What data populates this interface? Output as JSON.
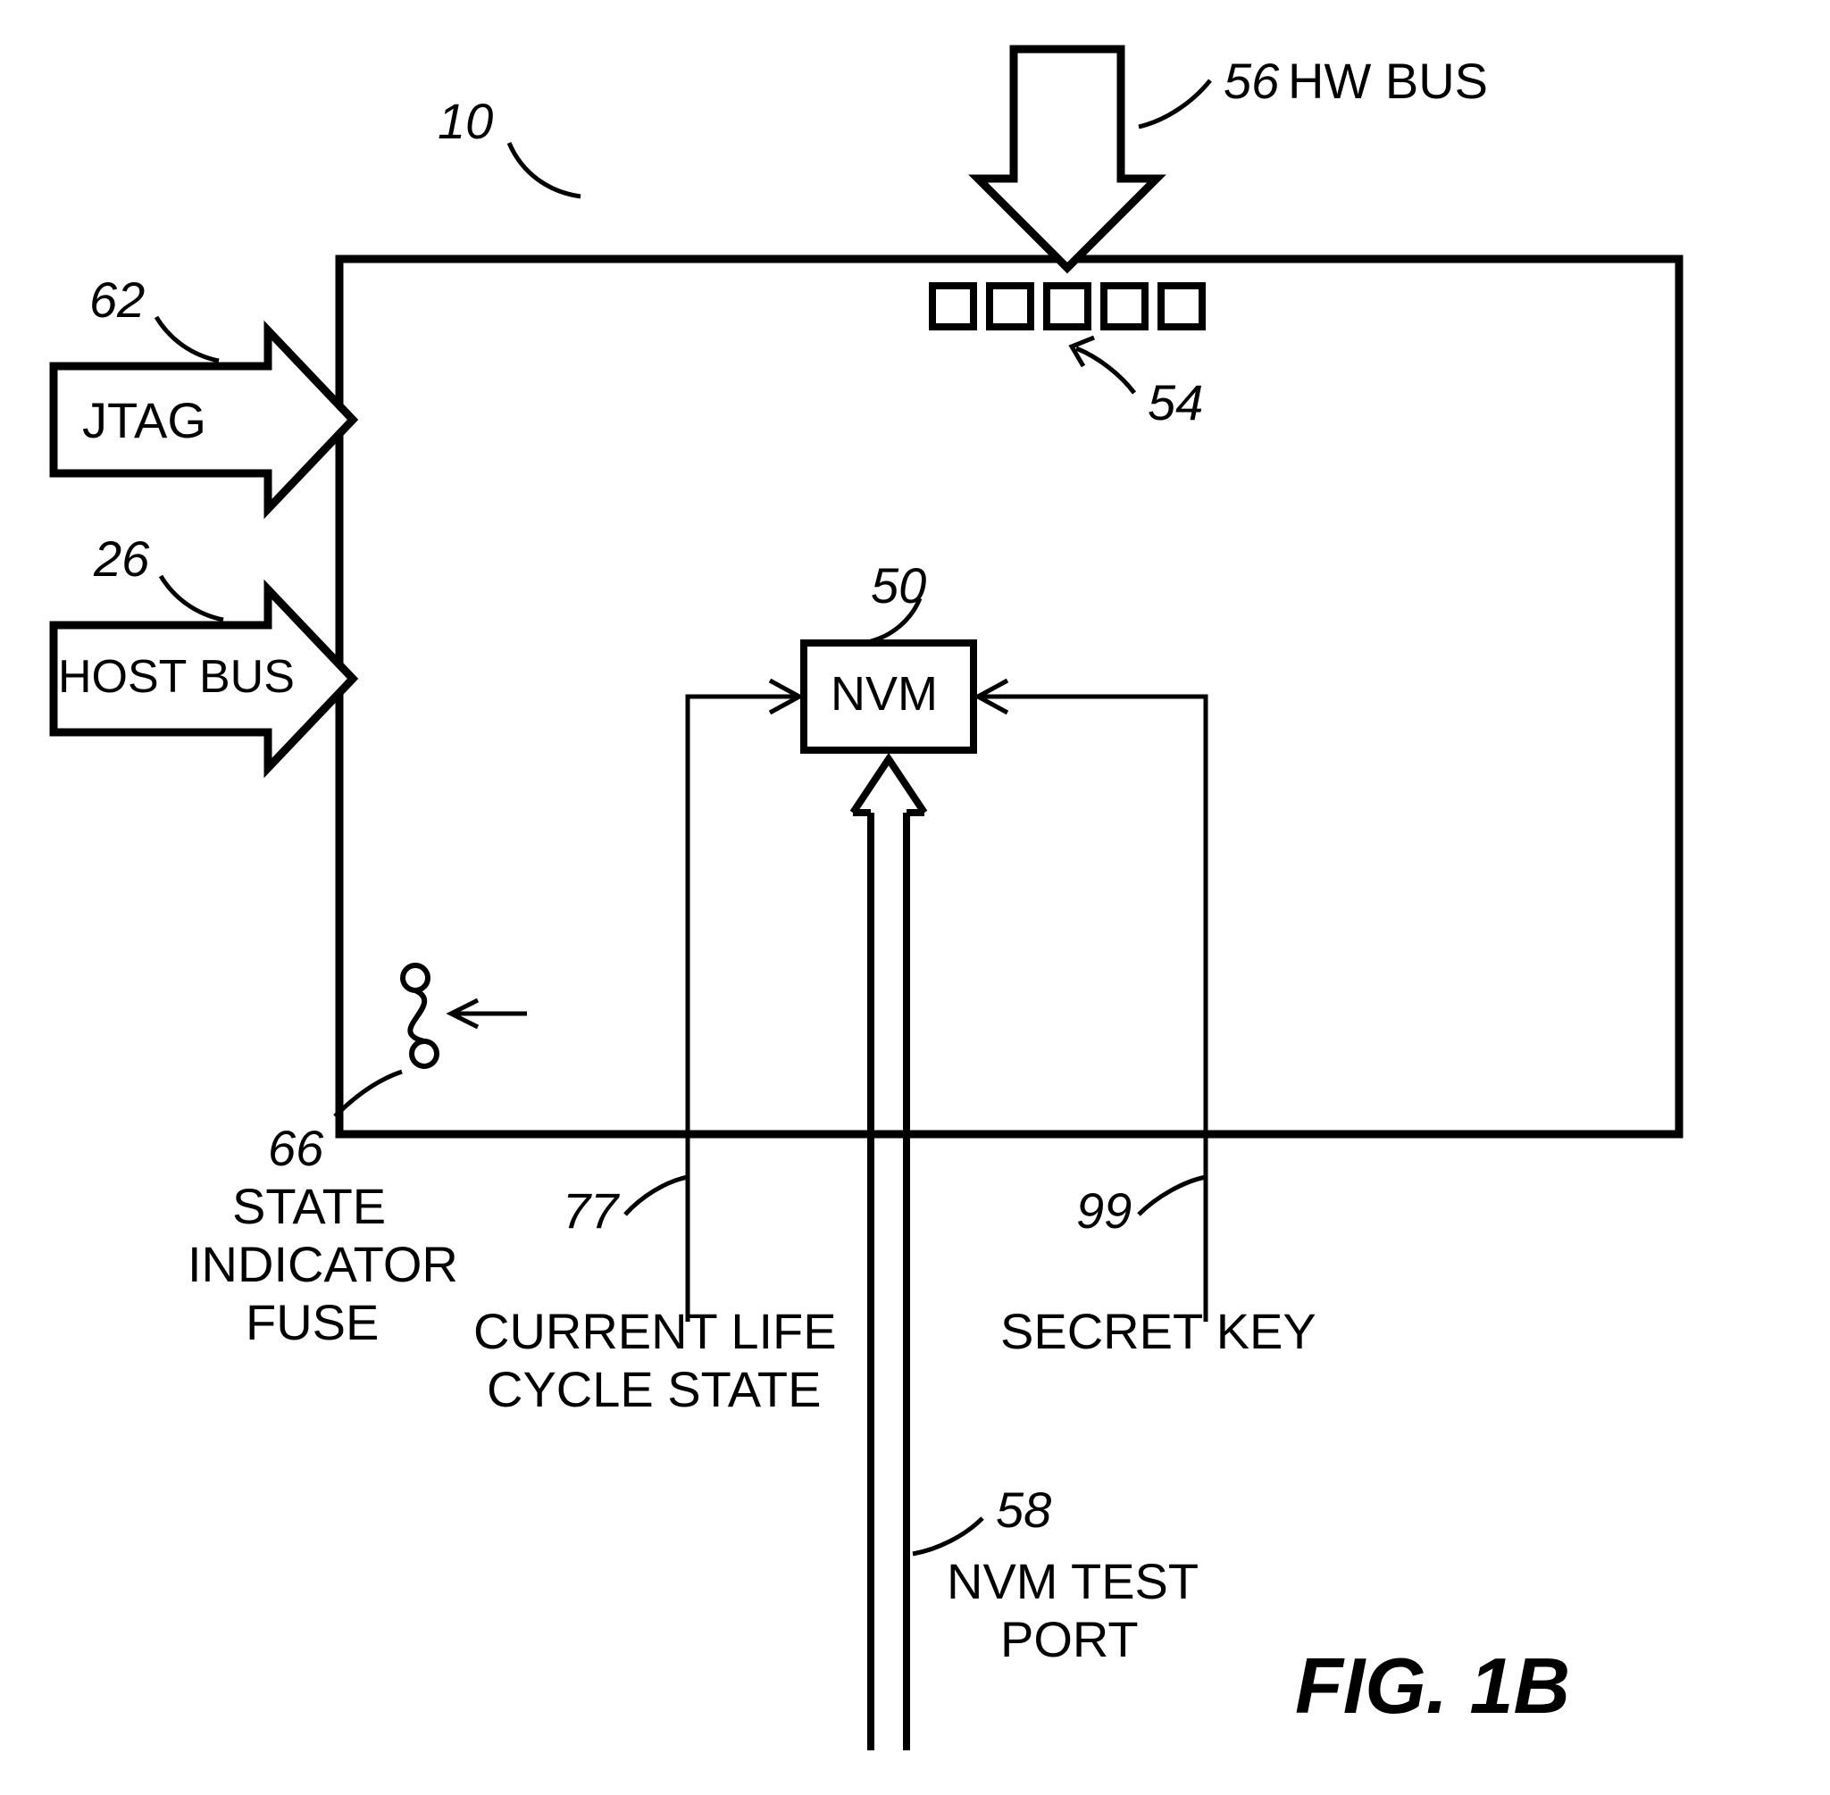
{
  "figure": {
    "title": "FIG. 1B",
    "title_fontsize": 88,
    "title_weight": "bold",
    "title_style": "italic",
    "ref10": "10",
    "stroke": "#000000",
    "background": "#ffffff",
    "main_box_stroke_width": 9,
    "arrow_fill": "#ffffff",
    "arrow_stroke_width": 9,
    "thin_line_width": 5,
    "ref_fontsize": 56,
    "ref_style": "italic",
    "label_fontsize": 56,
    "label_weight": "normal"
  },
  "jtag": {
    "ref": "62",
    "label": "JTAG"
  },
  "host_bus": {
    "ref": "26",
    "label": "HOST BUS"
  },
  "hw_bus": {
    "ref": "56",
    "label": "HW BUS"
  },
  "nvm": {
    "ref": "50",
    "label": "NVM"
  },
  "pins": {
    "ref": "54",
    "count": 5,
    "box_size": 46,
    "gap": 18,
    "stroke_width": 8
  },
  "fuse": {
    "ref": "66",
    "label_l1": "STATE",
    "label_l2": "INDICATOR",
    "label_l3": "FUSE"
  },
  "clc": {
    "ref": "77",
    "label_l1": "CURRENT LIFE",
    "label_l2": "CYCLE STATE"
  },
  "secret_key": {
    "ref": "99",
    "label": "SECRET KEY"
  },
  "nvm_test": {
    "ref": "58",
    "label_l1": "NVM TEST",
    "label_l2": "PORT"
  }
}
